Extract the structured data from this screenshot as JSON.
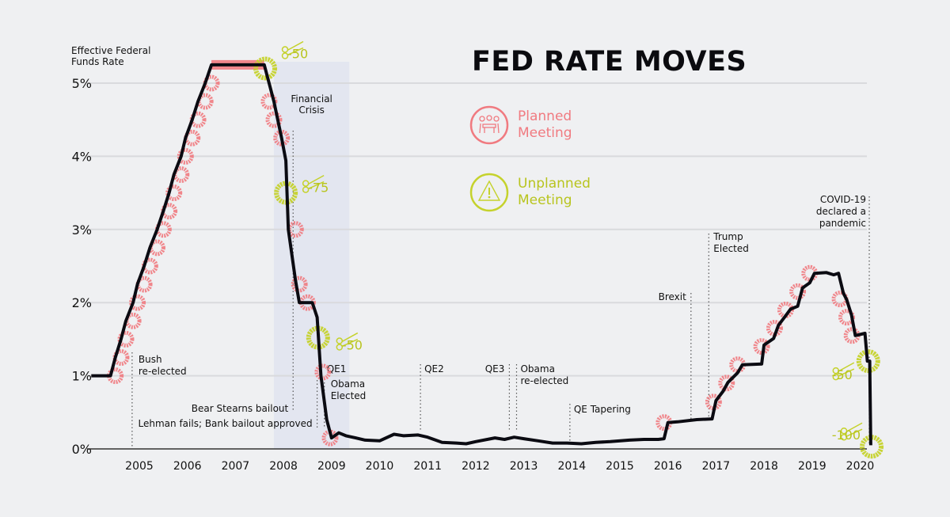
{
  "chart_data": {
    "type": "line",
    "title": "FED RATE MOVES",
    "ylabel": "Effective Federal Funds Rate",
    "xlabel": "",
    "ylim": [
      0,
      5.3
    ],
    "xlim": [
      2004.0,
      2020.4
    ],
    "yticks": [
      "0%",
      "1%",
      "2%",
      "3%",
      "4%",
      "5%"
    ],
    "ytick_values": [
      0,
      1,
      2,
      3,
      4,
      5
    ],
    "xticks": [
      "2005",
      "2006",
      "2007",
      "2008",
      "2009",
      "2010",
      "2011",
      "2012",
      "2013",
      "2014",
      "2015",
      "2016",
      "2017",
      "2018",
      "2019",
      "2020"
    ],
    "grid": true,
    "series": [
      {
        "x": [
          2004.0,
          2004.4,
          2004.5,
          2004.62,
          2004.72,
          2004.87,
          2004.96,
          2005.1,
          2005.22,
          2005.37,
          2005.5,
          2005.62,
          2005.72,
          2005.87,
          2005.96,
          2006.1,
          2006.22,
          2006.37,
          2006.5,
          2007.0,
          2007.3,
          2007.6,
          2007.7,
          2007.8,
          2007.96,
          2008.05,
          2008.1,
          2008.25,
          2008.33,
          2008.6,
          2008.7,
          2008.78,
          2008.9,
          2009.0,
          2009.15,
          2009.3,
          2009.5,
          2009.7,
          2010.0,
          2010.3,
          2010.5,
          2010.8,
          2011.0,
          2011.3,
          2011.6,
          2011.8,
          2012.0,
          2012.4,
          2012.6,
          2012.8,
          2013.0,
          2013.3,
          2013.6,
          2013.9,
          2014.2,
          2014.5,
          2014.8,
          2015.2,
          2015.5,
          2015.8,
          2015.92,
          2016.0,
          2016.2,
          2016.6,
          2016.92,
          2017.0,
          2017.15,
          2017.25,
          2017.45,
          2017.55,
          2017.95,
          2018.0,
          2018.2,
          2018.3,
          2018.45,
          2018.55,
          2018.7,
          2018.8,
          2018.95,
          2019.05,
          2019.3,
          2019.45,
          2019.55,
          2019.65,
          2019.72,
          2019.82,
          2019.9,
          2020.1,
          2020.15,
          2020.2,
          2020.22
        ],
        "y": [
          1.0,
          1.0,
          1.25,
          1.5,
          1.75,
          2.0,
          2.25,
          2.5,
          2.75,
          3.0,
          3.25,
          3.5,
          3.75,
          4.0,
          4.25,
          4.5,
          4.75,
          5.0,
          5.25,
          5.25,
          5.25,
          5.25,
          5.0,
          4.75,
          4.25,
          3.94,
          3.0,
          2.3,
          2.0,
          2.0,
          1.8,
          1.0,
          0.4,
          0.15,
          0.22,
          0.18,
          0.15,
          0.12,
          0.11,
          0.2,
          0.18,
          0.19,
          0.16,
          0.09,
          0.08,
          0.07,
          0.1,
          0.15,
          0.13,
          0.16,
          0.14,
          0.11,
          0.08,
          0.08,
          0.07,
          0.09,
          0.1,
          0.12,
          0.13,
          0.13,
          0.14,
          0.36,
          0.37,
          0.4,
          0.41,
          0.66,
          0.79,
          0.91,
          1.04,
          1.15,
          1.16,
          1.42,
          1.51,
          1.69,
          1.82,
          1.91,
          1.95,
          2.2,
          2.27,
          2.4,
          2.41,
          2.38,
          2.4,
          2.13,
          2.04,
          1.83,
          1.55,
          1.58,
          1.2,
          1.2,
          0.05
        ]
      }
    ],
    "planned_meetings": [
      [
        2004.5,
        1.0
      ],
      [
        2004.62,
        1.25
      ],
      [
        2004.72,
        1.5
      ],
      [
        2004.87,
        1.75
      ],
      [
        2004.96,
        2.0
      ],
      [
        2005.1,
        2.25
      ],
      [
        2005.22,
        2.5
      ],
      [
        2005.37,
        2.75
      ],
      [
        2005.5,
        3.0
      ],
      [
        2005.62,
        3.25
      ],
      [
        2005.72,
        3.5
      ],
      [
        2005.87,
        3.75
      ],
      [
        2005.96,
        4.0
      ],
      [
        2006.1,
        4.25
      ],
      [
        2006.22,
        4.5
      ],
      [
        2006.37,
        4.75
      ],
      [
        2006.5,
        5.0
      ],
      [
        2007.7,
        4.75
      ],
      [
        2007.8,
        4.5
      ],
      [
        2007.96,
        4.25
      ],
      [
        2008.25,
        3.0
      ],
      [
        2008.33,
        2.25
      ],
      [
        2008.5,
        2.0
      ],
      [
        2008.82,
        1.05
      ],
      [
        2008.97,
        0.15
      ],
      [
        2015.92,
        0.36
      ],
      [
        2016.95,
        0.64
      ],
      [
        2017.22,
        0.9
      ],
      [
        2017.45,
        1.15
      ],
      [
        2017.95,
        1.4
      ],
      [
        2018.22,
        1.65
      ],
      [
        2018.45,
        1.9
      ],
      [
        2018.7,
        2.15
      ],
      [
        2018.95,
        2.4
      ],
      [
        2019.58,
        2.05
      ],
      [
        2019.72,
        1.8
      ],
      [
        2019.83,
        1.55
      ]
    ],
    "unplanned_meetings": [
      {
        "x": 2007.62,
        "y": 5.2,
        "label": "-50"
      },
      {
        "x": 2008.05,
        "y": 3.5,
        "label": "-75"
      },
      {
        "x": 2008.72,
        "y": 1.52,
        "label": "-50"
      },
      {
        "x": 2020.17,
        "y": 1.2,
        "label": "-50"
      },
      {
        "x": 2020.24,
        "y": 0.03,
        "label": "-100"
      }
    ],
    "shaded_periods": [
      {
        "label": "Financial Crisis",
        "x": [
          2007.8,
          2009.37
        ]
      }
    ],
    "annotations": [
      {
        "label": "Bush re-elected",
        "x": 2004.85
      },
      {
        "label": "Bear Stearns bailout",
        "x": 2008.2
      },
      {
        "label": "Lehman fails; Bank bailout approved",
        "x": 2008.7
      },
      {
        "label": "QE1",
        "x": 2008.9
      },
      {
        "label": "Obama Elected",
        "x": 2008.85
      },
      {
        "label": "QE2",
        "x": 2010.85
      },
      {
        "label": "QE3",
        "x": 2012.7
      },
      {
        "label": "Obama re-elected",
        "x": 2012.85
      },
      {
        "label": "QE Tapering",
        "x": 2013.96
      },
      {
        "label": "Brexit",
        "x": 2016.48
      },
      {
        "label": "Trump Elected",
        "x": 2016.85
      },
      {
        "label": "COVID-19 declared a pandemic",
        "x": 2020.19
      }
    ],
    "legend": [
      {
        "label": "Planned Meeting",
        "color": "#f07a80",
        "icon": "meeting-icon"
      },
      {
        "label": "Unplanned Meeting",
        "color": "#c5d22c",
        "icon": "warning-icon"
      }
    ],
    "colors": {
      "line": "#0b0b12",
      "planned": "#f07a80",
      "unplanned": "#c5d22c",
      "shade": "#e3e6f0",
      "grid": "#d9dadd"
    }
  }
}
